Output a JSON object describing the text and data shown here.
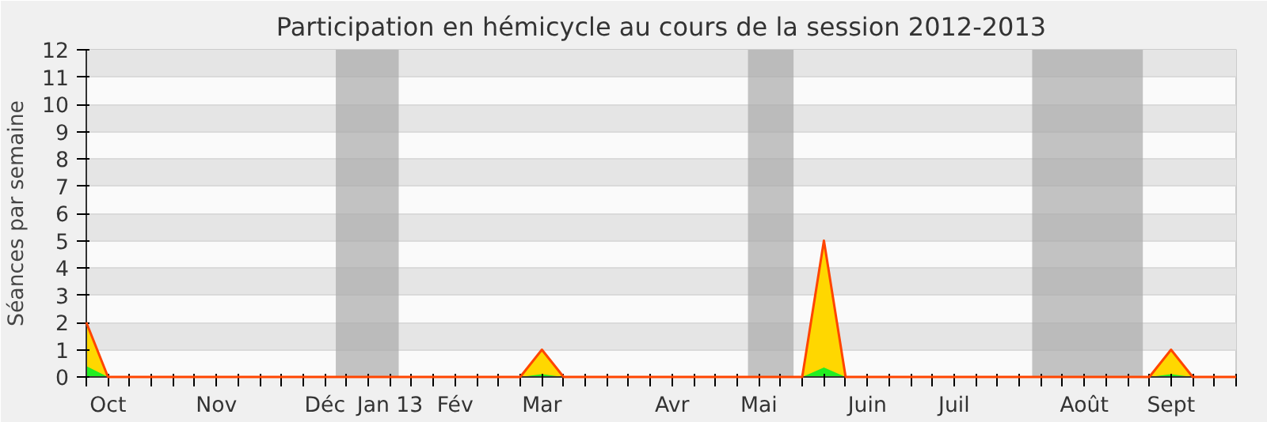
{
  "chart_data": {
    "type": "area",
    "title": "Participation en hémicycle au cours de la session 2012-2013",
    "ylabel": "Séances par semaine",
    "categories": [
      null,
      "Oct",
      null,
      null,
      null,
      null,
      "Nov",
      null,
      null,
      null,
      null,
      "Déc",
      null,
      null,
      "Jan 13",
      null,
      null,
      "Fév",
      null,
      null,
      null,
      "Mar",
      null,
      null,
      null,
      null,
      null,
      "Avr",
      null,
      null,
      null,
      "Mai",
      null,
      null,
      null,
      null,
      "Juin",
      null,
      null,
      null,
      "Juil",
      null,
      null,
      null,
      null,
      null,
      "Août",
      null,
      null,
      null,
      "Sept",
      null,
      null,
      null
    ],
    "series": [
      {
        "color": "#ffd700",
        "values": [
          2,
          0,
          0,
          0,
          0,
          0,
          0,
          0,
          0,
          0,
          0,
          0,
          0,
          0,
          0,
          0,
          0,
          0,
          0,
          0,
          0,
          1,
          0,
          0,
          0,
          0,
          0,
          0,
          0,
          0,
          0,
          0,
          0,
          0,
          5,
          0,
          0,
          0,
          0,
          0,
          0,
          0,
          0,
          0,
          0,
          0,
          0,
          0,
          0,
          0,
          1,
          0,
          0,
          0
        ]
      },
      {
        "color": "#22ee22",
        "values": [
          0.4,
          0,
          0,
          0,
          0,
          0,
          0,
          0,
          0,
          0,
          0,
          0,
          0,
          0,
          0,
          0,
          0,
          0,
          0,
          0,
          0,
          0.1,
          0,
          0,
          0,
          0,
          0,
          0,
          0,
          0,
          0,
          0,
          0,
          0,
          0.35,
          0,
          0,
          0,
          0,
          0,
          0,
          0,
          0,
          0,
          0,
          0,
          0,
          0,
          0,
          0,
          0.1,
          0,
          0,
          0
        ]
      }
    ],
    "ylim": [
      0,
      12
    ],
    "yticks": [
      0,
      1,
      2,
      3,
      4,
      5,
      6,
      7,
      8,
      9,
      10,
      11,
      12
    ],
    "grid": "y"
  }
}
